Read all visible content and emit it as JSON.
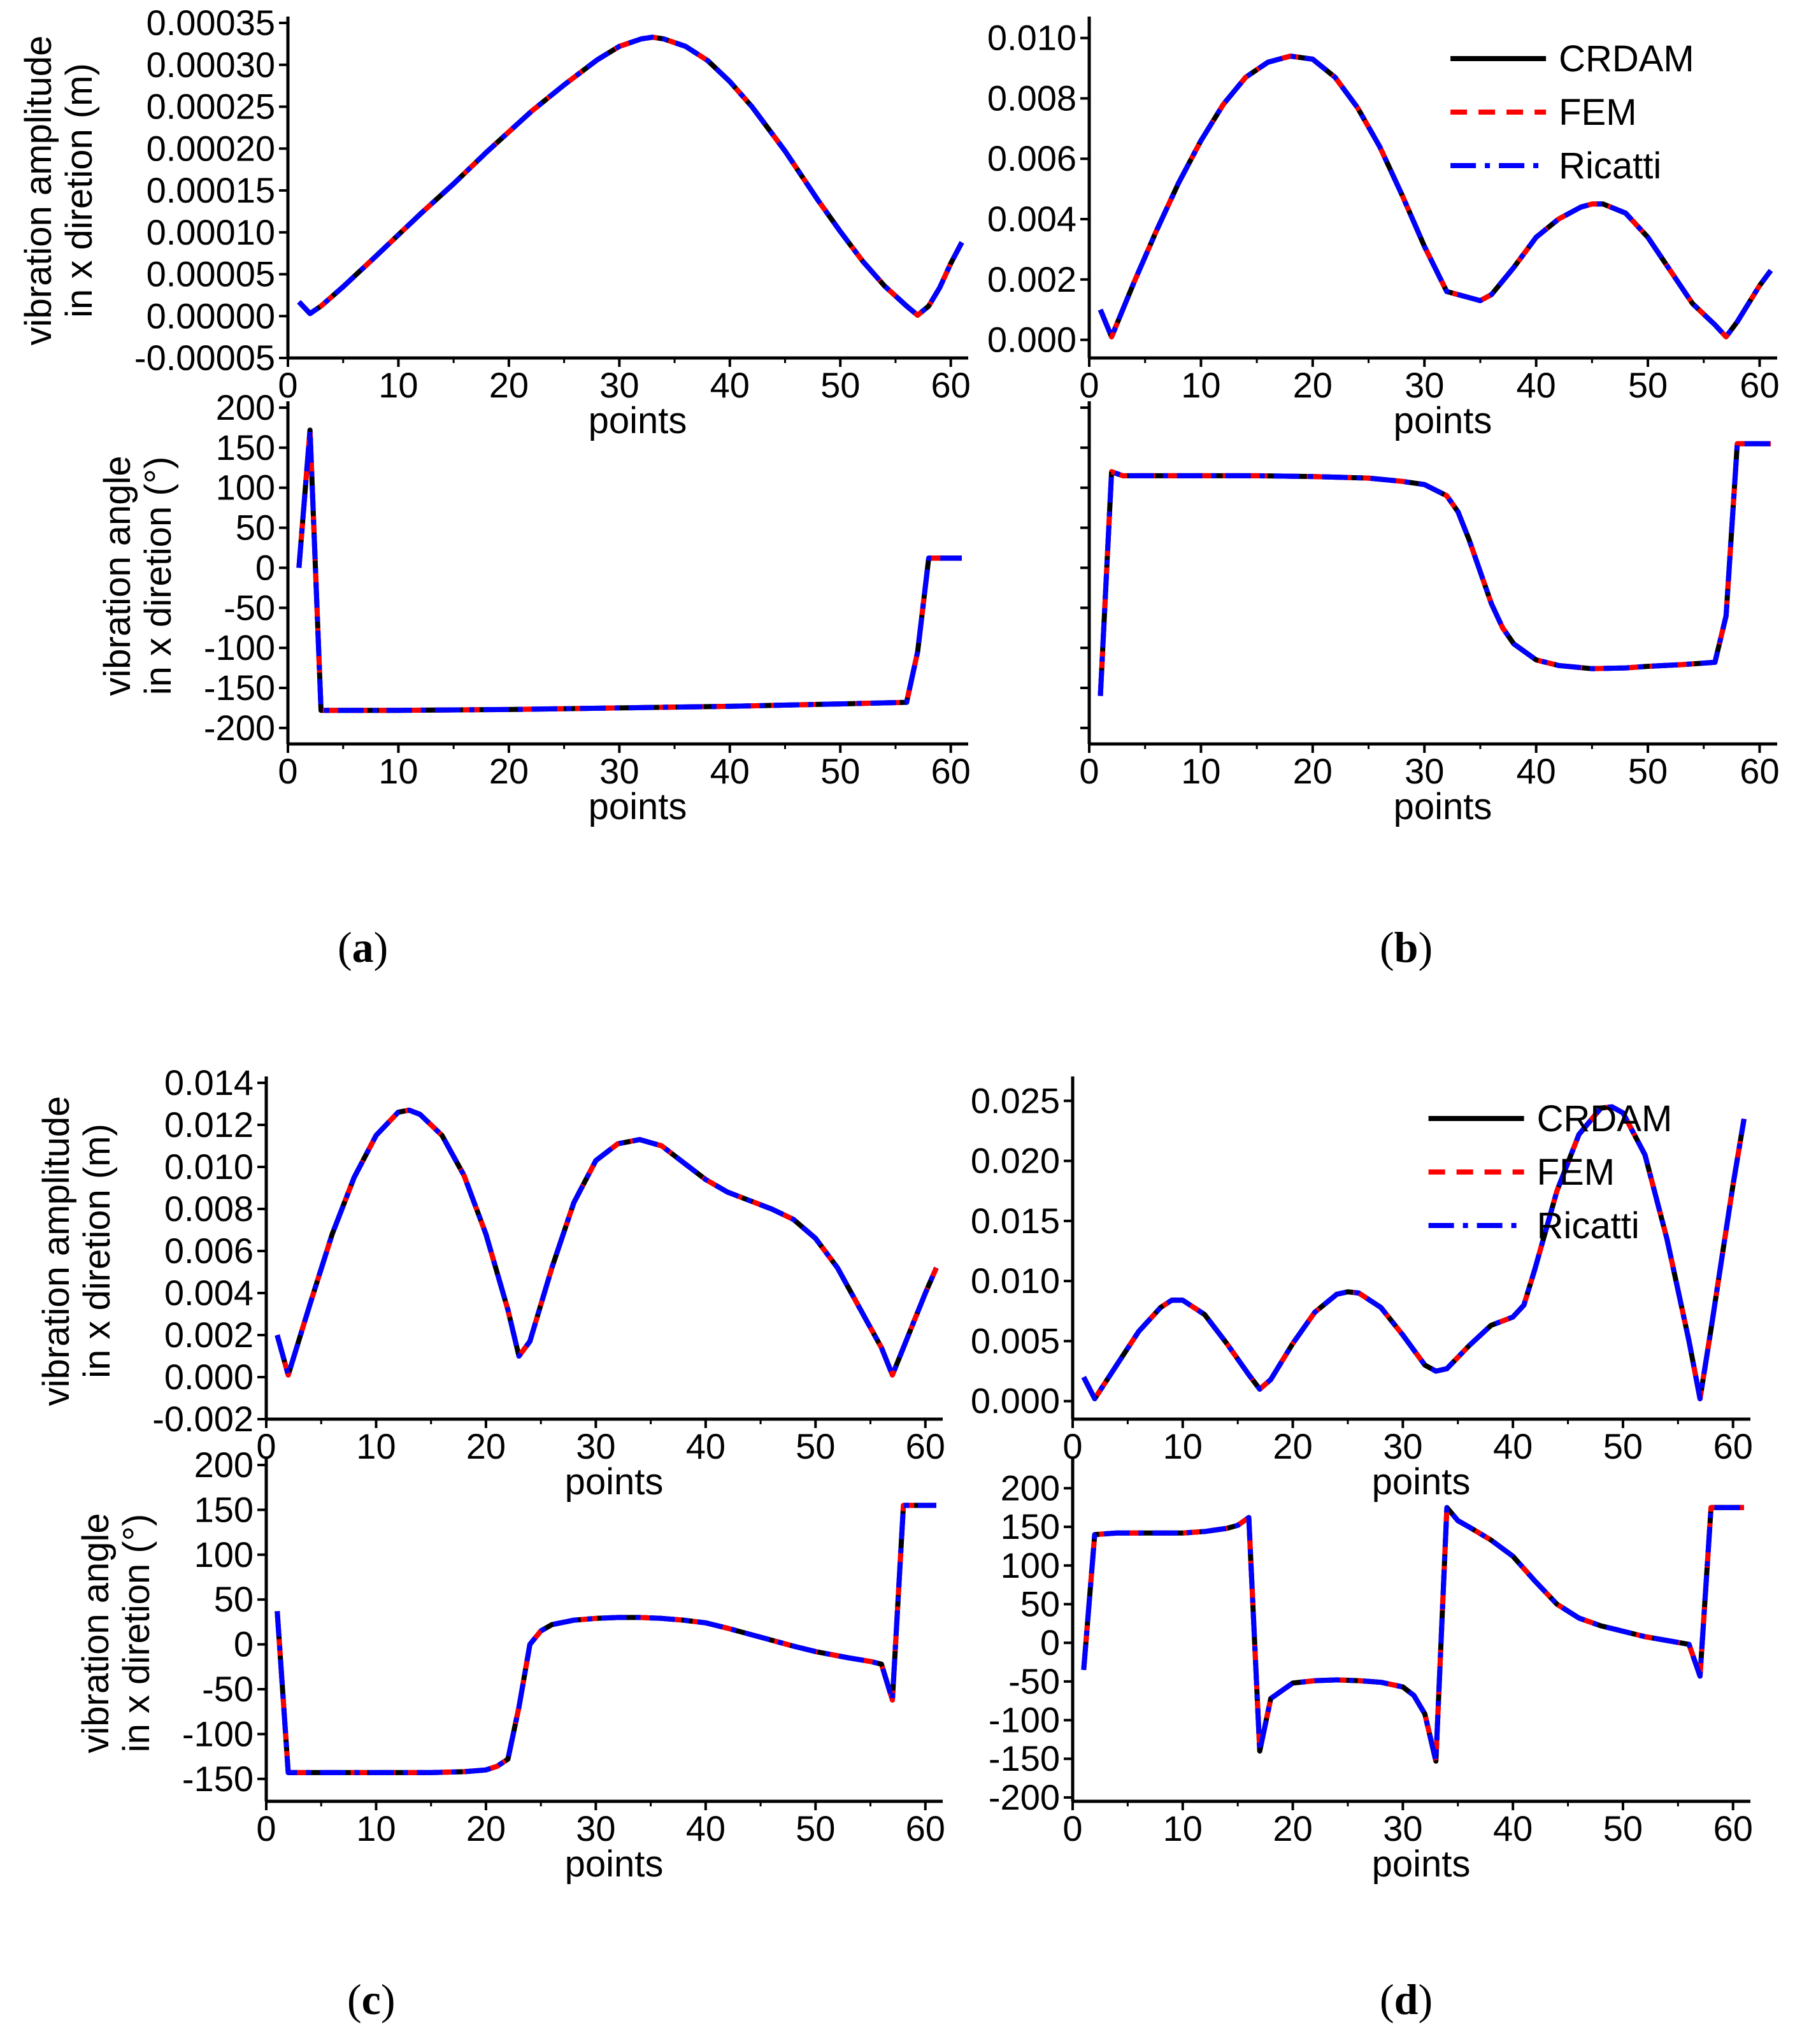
{
  "series_names": [
    "CRDAM",
    "FEM",
    "Ricatti"
  ],
  "series_colors": {
    "CRDAM": "#000000",
    "FEM": "#ff0000",
    "Ricatti": "#0000ff"
  },
  "panel_labels": [
    {
      "open": "(",
      "letter": "a",
      "close": ")"
    },
    {
      "open": "(",
      "letter": "b",
      "close": ")"
    },
    {
      "open": "(",
      "letter": "c",
      "close": ")"
    },
    {
      "open": "(",
      "letter": "d",
      "close": ")"
    }
  ],
  "chart_data": [
    {
      "id": "a-amplitude",
      "type": "line",
      "ylabel": [
        "vibration amplitude",
        "in x diretion (m)"
      ],
      "xlabel": "points",
      "xlim": [
        0,
        61
      ],
      "xticks": [
        "0",
        "10",
        "20",
        "30",
        "40",
        "50",
        "60"
      ],
      "ylim": [
        -5e-05,
        0.00035
      ],
      "yticks": [
        "-0.00005",
        "0.00000",
        "0.00005",
        "0.00010",
        "0.00015",
        "0.00020",
        "0.00025",
        "0.00030",
        "0.00035"
      ],
      "x": [
        1,
        2,
        3,
        5,
        8,
        10,
        12,
        15,
        18,
        20,
        22,
        25,
        28,
        30,
        32,
        33,
        34,
        36,
        38,
        40,
        42,
        45,
        48,
        50,
        52,
        54,
        56,
        57,
        58,
        59,
        60,
        61
      ],
      "y": [
        1.7e-05,
        3e-06,
        1.2e-05,
        3.5e-05,
        7.2e-05,
        9.7e-05,
        0.000122,
        0.000158,
        0.000196,
        0.00022,
        0.000244,
        0.000276,
        0.000306,
        0.000322,
        0.000331,
        0.000333,
        0.000331,
        0.000322,
        0.000305,
        0.00028,
        0.00025,
        0.000197,
        0.000138,
        0.000101,
        6.6e-05,
        3.6e-05,
        1.2e-05,
        1e-06,
        1.2e-05,
        3.4e-05,
        6.3e-05,
        8.8e-05
      ],
      "legend": false
    },
    {
      "id": "b-amplitude",
      "type": "line",
      "ylabel": [],
      "xlabel": "points",
      "xlim": [
        0,
        61
      ],
      "xticks": [
        "0",
        "10",
        "20",
        "30",
        "40",
        "50",
        "60"
      ],
      "ylim": [
        -0.0006,
        0.0105
      ],
      "yticks": [
        "0.000",
        "0.002",
        "0.004",
        "0.006",
        "0.008",
        "0.010"
      ],
      "x": [
        1,
        2,
        4,
        6,
        8,
        10,
        12,
        14,
        16,
        18,
        20,
        22,
        24,
        26,
        28,
        30,
        32,
        34,
        35,
        36,
        38,
        40,
        42,
        44,
        45,
        46,
        48,
        50,
        52,
        54,
        56,
        57,
        58,
        59,
        60,
        61
      ],
      "y": [
        0.001,
        0.0001,
        0.0019,
        0.0036,
        0.0052,
        0.0066,
        0.0078,
        0.0087,
        0.0092,
        0.0094,
        0.0093,
        0.0087,
        0.0077,
        0.0064,
        0.0048,
        0.0031,
        0.0016,
        0.0014,
        0.0013,
        0.0015,
        0.0024,
        0.0034,
        0.004,
        0.0044,
        0.0045,
        0.0045,
        0.0042,
        0.0034,
        0.0023,
        0.0012,
        0.0005,
        0.0001,
        0.0006,
        0.0012,
        0.0018,
        0.0023
      ],
      "legend": true
    },
    {
      "id": "a-angle",
      "type": "line",
      "ylabel": [
        "vibration angle",
        "in x diretion (°)"
      ],
      "xlabel": "points",
      "xlim": [
        0,
        61
      ],
      "xticks": [
        "0",
        "10",
        "20",
        "30",
        "40",
        "50",
        "60"
      ],
      "ylim": [
        -220,
        200
      ],
      "yticks": [
        "-200",
        "-150",
        "-100",
        "-50",
        "0",
        "50",
        "100",
        "150",
        "200"
      ],
      "x": [
        1,
        2,
        3,
        5,
        10,
        20,
        30,
        40,
        50,
        56,
        57,
        58,
        60,
        61
      ],
      "y": [
        0,
        172,
        -178,
        -178,
        -178,
        -177,
        -175,
        -173,
        -170,
        -168,
        -105,
        12,
        12,
        12
      ],
      "legend": false
    },
    {
      "id": "b-angle",
      "type": "line",
      "ylabel": [],
      "xlabel": "points",
      "xlim": [
        0,
        61
      ],
      "xticks": [
        "0",
        "10",
        "20",
        "30",
        "40",
        "50",
        "60"
      ],
      "ylim": [
        -220,
        200
      ],
      "hide_y_labels": true,
      "yticks": [
        "-200",
        "-150",
        "-100",
        "-50",
        "0",
        "50",
        "100",
        "150",
        "200"
      ],
      "x": [
        1,
        2,
        3,
        5,
        10,
        15,
        20,
        25,
        28,
        30,
        32,
        33,
        34,
        35,
        36,
        37,
        38,
        40,
        42,
        45,
        48,
        50,
        53,
        56,
        57,
        58,
        60,
        61
      ],
      "y": [
        -160,
        120,
        115,
        115,
        115,
        115,
        114,
        112,
        108,
        104,
        90,
        70,
        35,
        -5,
        -45,
        -75,
        -95,
        -115,
        -122,
        -126,
        -125,
        -123,
        -121,
        -118,
        -60,
        155,
        155,
        155
      ],
      "legend": false
    },
    {
      "id": "c-amplitude",
      "type": "line",
      "ylabel": [
        "vibration amplitude",
        "in x diretion (m)"
      ],
      "xlabel": "points",
      "xlim": [
        0,
        61
      ],
      "xticks": [
        "0",
        "10",
        "20",
        "30",
        "40",
        "50",
        "60"
      ],
      "ylim": [
        -0.002,
        0.014
      ],
      "yticks": [
        "-0.002",
        "0.000",
        "0.002",
        "0.004",
        "0.006",
        "0.008",
        "0.010",
        "0.012",
        "0.014"
      ],
      "x": [
        1,
        2,
        4,
        6,
        8,
        10,
        12,
        13,
        14,
        16,
        18,
        20,
        22,
        23,
        24,
        26,
        28,
        30,
        32,
        34,
        36,
        38,
        40,
        42,
        44,
        46,
        48,
        50,
        52,
        54,
        56,
        57,
        58,
        59,
        60,
        61
      ],
      "y": [
        0.002,
        0.0001,
        0.0035,
        0.0068,
        0.0095,
        0.0115,
        0.0126,
        0.0127,
        0.0125,
        0.0115,
        0.0096,
        0.0068,
        0.0032,
        0.001,
        0.0017,
        0.0052,
        0.0083,
        0.0103,
        0.0111,
        0.0113,
        0.011,
        0.0102,
        0.0094,
        0.0088,
        0.0084,
        0.008,
        0.0075,
        0.0066,
        0.0052,
        0.0033,
        0.0014,
        0.0001,
        0.0014,
        0.0027,
        0.004,
        0.0052
      ],
      "legend": false
    },
    {
      "id": "d-amplitude",
      "type": "line",
      "ylabel": [],
      "xlabel": "points",
      "xlim": [
        0,
        61
      ],
      "xticks": [
        "0",
        "10",
        "20",
        "30",
        "40",
        "50",
        "60"
      ],
      "ylim": [
        -0.0015,
        0.0265
      ],
      "yticks": [
        "0.000",
        "0.005",
        "0.010",
        "0.015",
        "0.020",
        "0.025"
      ],
      "x": [
        1,
        2,
        4,
        6,
        8,
        9,
        10,
        12,
        14,
        16,
        17,
        18,
        20,
        22,
        24,
        25,
        26,
        28,
        30,
        32,
        33,
        34,
        36,
        38,
        40,
        41,
        42,
        44,
        46,
        48,
        49,
        50,
        52,
        54,
        56,
        57,
        58,
        59,
        60,
        61
      ],
      "y": [
        0.002,
        0.0002,
        0.003,
        0.0058,
        0.0078,
        0.0084,
        0.0084,
        0.0072,
        0.0048,
        0.0022,
        0.001,
        0.0018,
        0.0048,
        0.0074,
        0.0089,
        0.0091,
        0.009,
        0.0078,
        0.0055,
        0.003,
        0.0025,
        0.0027,
        0.0046,
        0.0063,
        0.007,
        0.008,
        0.011,
        0.0175,
        0.0222,
        0.0244,
        0.0245,
        0.024,
        0.0205,
        0.0135,
        0.005,
        0.0002,
        0.006,
        0.012,
        0.018,
        0.0235
      ],
      "legend": true
    },
    {
      "id": "c-angle",
      "type": "line",
      "ylabel": [
        "vibration angle",
        "in x diretion (°)"
      ],
      "xlabel": "points",
      "xlim": [
        0,
        61
      ],
      "xticks": [
        "0",
        "10",
        "20",
        "30",
        "40",
        "50",
        "60"
      ],
      "ylim": [
        -175,
        200
      ],
      "yticks": [
        "-150",
        "-100",
        "-50",
        "0",
        "50",
        "100",
        "150",
        "200"
      ],
      "x": [
        1,
        2,
        3,
        5,
        10,
        15,
        18,
        20,
        21,
        22,
        23,
        24,
        25,
        26,
        28,
        30,
        32,
        34,
        36,
        38,
        40,
        42,
        45,
        48,
        50,
        53,
        55,
        56,
        57,
        58,
        60,
        61
      ],
      "y": [
        37,
        -143,
        -143,
        -143,
        -143,
        -143,
        -142,
        -140,
        -136,
        -128,
        -70,
        0,
        15,
        22,
        27,
        29,
        30,
        30,
        29,
        27,
        24,
        18,
        8,
        -2,
        -8,
        -15,
        -19,
        -22,
        -62,
        155,
        155,
        155
      ],
      "legend": false
    },
    {
      "id": "d-angle",
      "type": "line",
      "ylabel": [],
      "xlabel": "points",
      "xlim": [
        0,
        61
      ],
      "xticks": [
        "0",
        "10",
        "20",
        "30",
        "40",
        "50",
        "60"
      ],
      "ylim": [
        -205,
        230
      ],
      "yticks": [
        "-200",
        "-150",
        "-100",
        "-50",
        "0",
        "50",
        "100",
        "150",
        "200"
      ],
      "x": [
        1,
        2,
        4,
        6,
        8,
        10,
        12,
        14,
        15,
        16,
        17,
        18,
        19,
        20,
        22,
        24,
        26,
        28,
        30,
        31,
        32,
        33,
        34,
        35,
        36,
        38,
        40,
        42,
        44,
        46,
        48,
        50,
        52,
        54,
        56,
        57,
        58,
        60,
        61
      ],
      "y": [
        -35,
        140,
        142,
        142,
        142,
        142,
        144,
        148,
        152,
        162,
        -140,
        -72,
        -62,
        -52,
        -49,
        -48,
        -49,
        -51,
        -57,
        -68,
        -92,
        -153,
        175,
        158,
        150,
        133,
        112,
        80,
        50,
        32,
        22,
        15,
        8,
        3,
        -2,
        -43,
        175,
        175,
        175
      ],
      "legend": false
    }
  ]
}
